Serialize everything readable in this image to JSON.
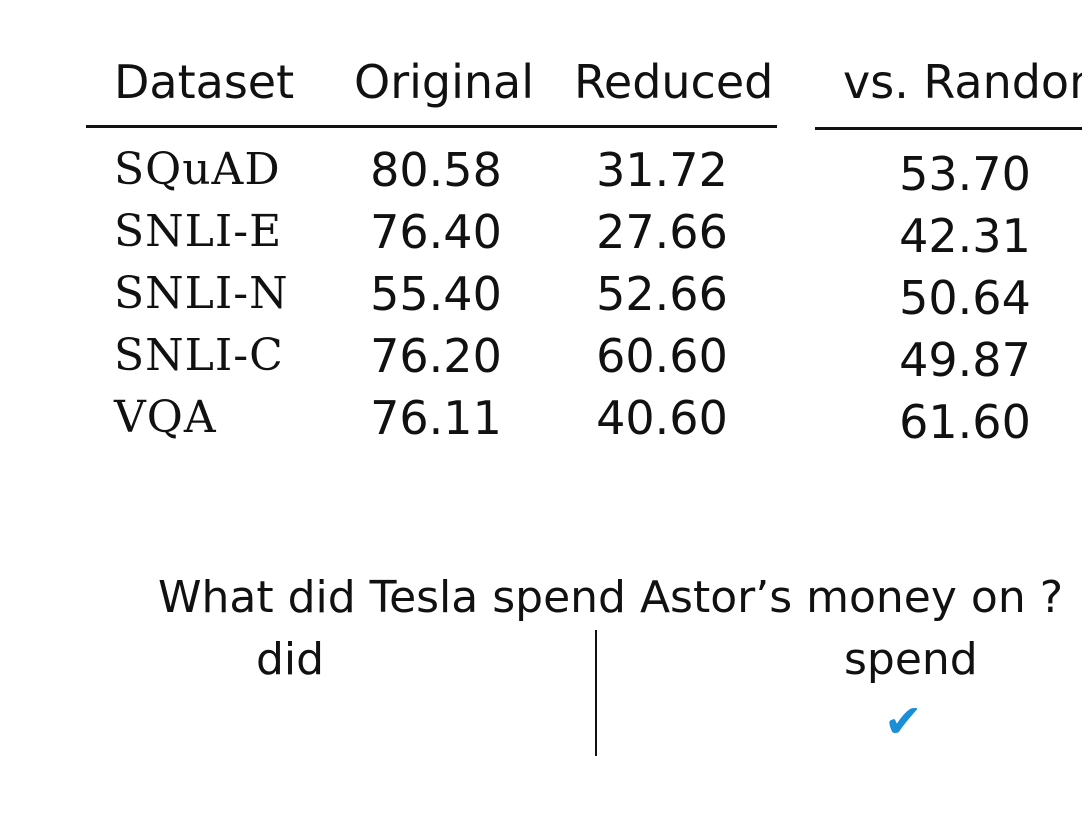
{
  "table": {
    "headers": {
      "dataset": "Dataset",
      "original": "Original",
      "reduced": "Reduced",
      "vs_random": "vs. Random"
    },
    "rows": [
      {
        "dataset": "SQuAD",
        "original": "80.58",
        "reduced": "31.72",
        "vs_random": "53.70"
      },
      {
        "dataset": "SNLI-E",
        "original": "76.40",
        "reduced": "27.66",
        "vs_random": "42.31"
      },
      {
        "dataset": "SNLI-N",
        "original": "55.40",
        "reduced": "52.66",
        "vs_random": "50.64"
      },
      {
        "dataset": "SNLI-C",
        "original": "76.20",
        "reduced": "60.60",
        "vs_random": "49.87"
      },
      {
        "dataset": "VQA",
        "original": "76.11",
        "reduced": "40.60",
        "vs_random": "61.60"
      }
    ]
  },
  "example": {
    "question": "What did Tesla spend Astor’s money on ?",
    "left_token": "did",
    "right_token": "spend",
    "check_mark": "✔",
    "check_color": "#1a8fd8"
  }
}
